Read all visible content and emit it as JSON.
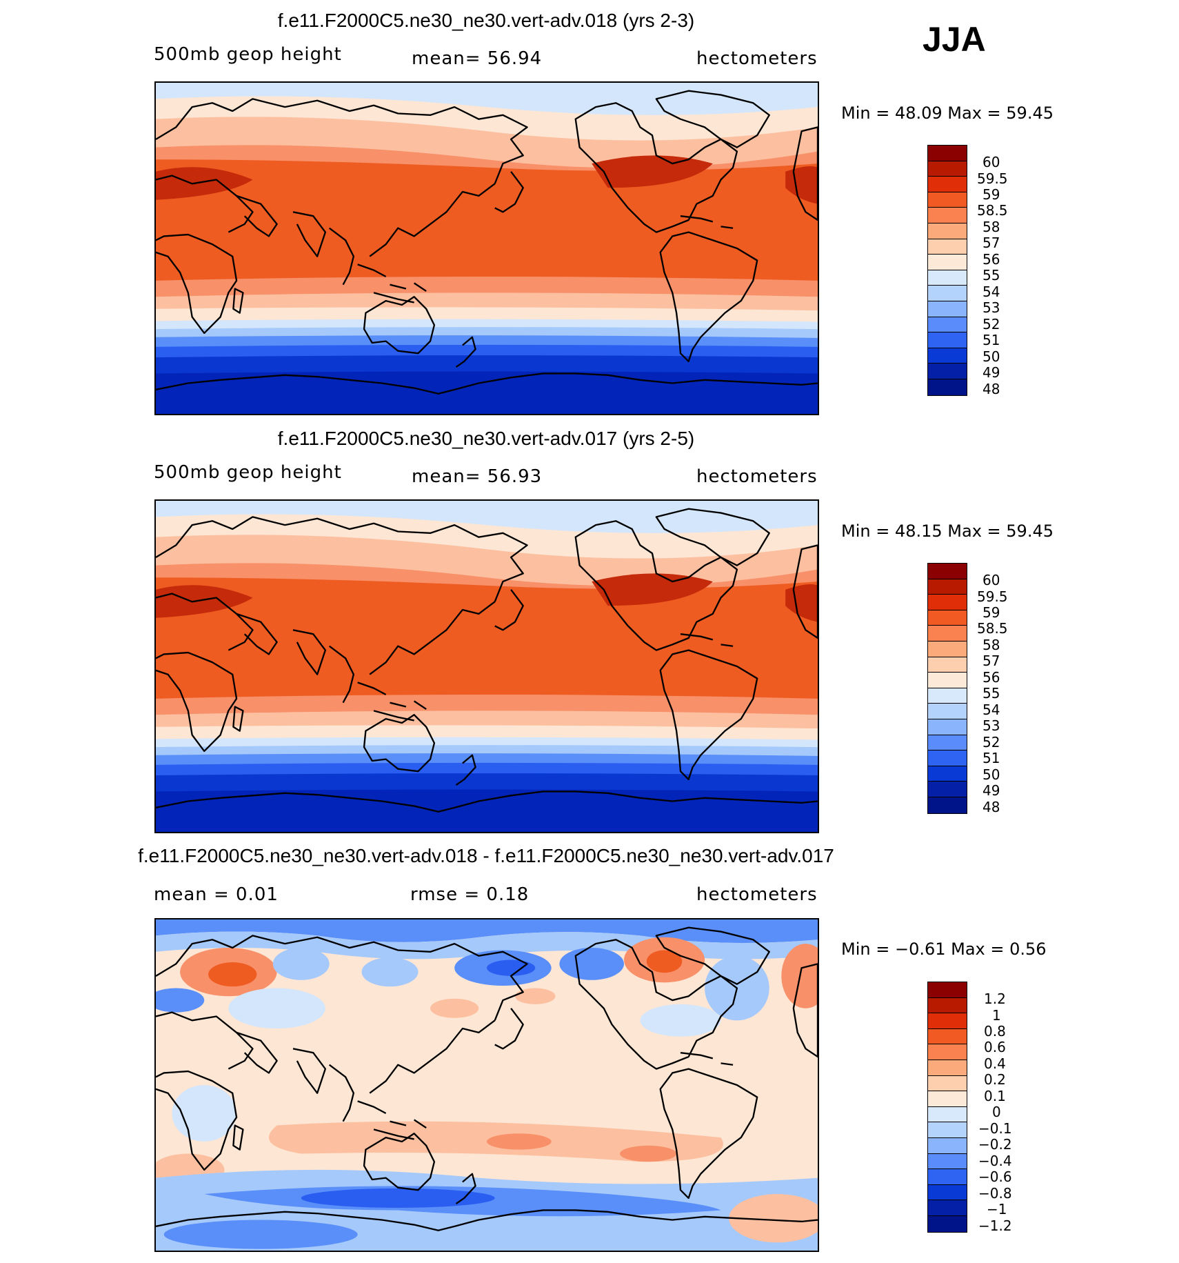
{
  "season": "JJA",
  "panels": [
    {
      "title": "f.e11.F2000C5.ne30_ne30.vert-adv.018 (yrs 2-3)",
      "left_label": "500mb  geop  height",
      "center_label": "mean=   56.94",
      "right_label": "hectometers",
      "minmax": "Min  =    48.09  Max  =    59.45",
      "colorbar_labels": [
        "60",
        "59.5",
        "59",
        "58.5",
        "58",
        "57",
        "56",
        "55",
        "54",
        "53",
        "52",
        "51",
        "50",
        "49",
        "48"
      ]
    },
    {
      "title": "f.e11.F2000C5.ne30_ne30.vert-adv.017 (yrs 2-5)",
      "left_label": "500mb  geop  height",
      "center_label": "mean=   56.93",
      "right_label": "hectometers",
      "minmax": "Min  =    48.15  Max  =    59.45",
      "colorbar_labels": [
        "60",
        "59.5",
        "59",
        "58.5",
        "58",
        "57",
        "56",
        "55",
        "54",
        "53",
        "52",
        "51",
        "50",
        "49",
        "48"
      ]
    },
    {
      "title": "f.e11.F2000C5.ne30_ne30.vert-adv.018 - f.e11.F2000C5.ne30_ne30.vert-adv.017",
      "left_label": "mean  =     0.01",
      "center_label": "rmse  =     0.18",
      "right_label": "hectometers",
      "minmax": "Min  =   −0.61  Max  =     0.56",
      "colorbar_labels": [
        "1.2",
        "1",
        "0.8",
        "0.6",
        "0.4",
        "0.2",
        "0.1",
        "0",
        "−0.1",
        "−0.2",
        "−0.4",
        "−0.6",
        "−0.8",
        "−1",
        "−1.2"
      ]
    }
  ],
  "colorbar_colors": [
    "#8b0000",
    "#b81a00",
    "#e02f08",
    "#f25a24",
    "#fa8150",
    "#fbaa7c",
    "#fdcfae",
    "#fde9d8",
    "#d7e9fb",
    "#b4d3fc",
    "#8ab4fc",
    "#5a8dfb",
    "#2f63f1",
    "#0a3ad5",
    "#0420a6",
    "#00148a"
  ],
  "map_palette": {
    "deep_red": "#c52a0a",
    "red": "#e34312",
    "orange": "#ef5c21",
    "light_orange": "#f8906a",
    "peach": "#fcc0a0",
    "cream": "#fde6d4",
    "pale_blue": "#d4e6fb",
    "light_blue": "#a6c9fc",
    "mid_blue": "#5a8ffa",
    "blue": "#2a5ef0",
    "dark_blue": "#0a37d0",
    "navy": "#0224b8"
  }
}
